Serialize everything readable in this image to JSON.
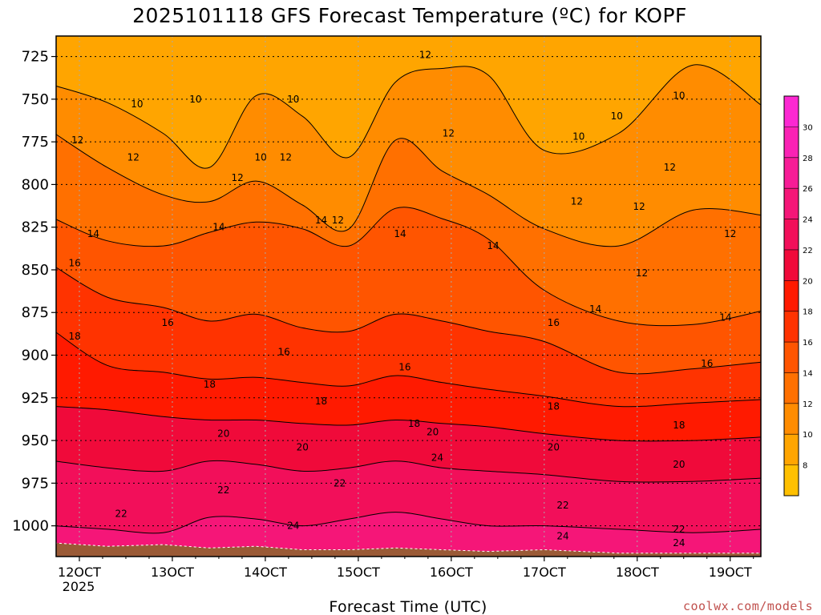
{
  "chart_data": {
    "type": "heatmap",
    "title": "2025101118 GFS Forecast Temperature (ºC) for KOPF",
    "xlabel": "Forecast Time (UTC)",
    "ylabel": "",
    "credit": "coolwx.com/models",
    "x_ticks": [
      "12OCT",
      "13OCT",
      "14OCT",
      "15OCT",
      "16OCT",
      "17OCT",
      "18OCT",
      "19OCT"
    ],
    "x_tick_day": [
      12,
      13,
      14,
      15,
      16,
      17,
      18,
      19
    ],
    "x_year_label": "2025",
    "x_range_days": [
      11.75,
      19.33
    ],
    "y_ticks": [
      725,
      750,
      775,
      800,
      825,
      850,
      875,
      900,
      925,
      950,
      975,
      1000
    ],
    "y_range_hPa": [
      713,
      1018
    ],
    "grid": true,
    "contour_interval": 2,
    "colorbar": {
      "levels": [
        6,
        8,
        10,
        12,
        14,
        16,
        18,
        20,
        22,
        24,
        26,
        28,
        30,
        32
      ],
      "tick_labels": [
        "8",
        "10",
        "12",
        "14",
        "16",
        "18",
        "20",
        "22",
        "24",
        "26",
        "28",
        "30"
      ],
      "colors": [
        "#ffc000",
        "#ffa500",
        "#ff8c00",
        "#ff7000",
        "#ff5500",
        "#ff3300",
        "#ff1a00",
        "#f00a3a",
        "#f20f5a",
        "#f51678",
        "#f71c96",
        "#fa22b4",
        "#fc28d2"
      ]
    },
    "isotherm_pressure_hPa": [
      {
        "temp": 10,
        "values": [
          742,
          752,
          770,
          790,
          748,
          760,
          784,
          740,
          732,
          736,
          780,
          770,
          730,
          754
        ]
      },
      {
        "temp": 12,
        "values": [
          770,
          790,
          806,
          810,
          798,
          812,
          826,
          774,
          792,
          806,
          826,
          836,
          815,
          818
        ]
      },
      {
        "temp": 14,
        "values": [
          820,
          833,
          836,
          828,
          822,
          826,
          836,
          814,
          820,
          832,
          862,
          880,
          882,
          874
        ]
      },
      {
        "temp": 16,
        "values": [
          848,
          866,
          872,
          880,
          876,
          884,
          886,
          876,
          880,
          886,
          892,
          910,
          908,
          904
        ]
      },
      {
        "temp": 18,
        "values": [
          886,
          906,
          910,
          914,
          913,
          916,
          918,
          912,
          916,
          920,
          924,
          930,
          928,
          926
        ]
      },
      {
        "temp": 20,
        "values": [
          930,
          932,
          936,
          938,
          938,
          940,
          941,
          938,
          940,
          942,
          946,
          950,
          950,
          948
        ]
      },
      {
        "temp": 22,
        "values": [
          962,
          966,
          968,
          962,
          964,
          968,
          966,
          962,
          966,
          968,
          970,
          974,
          974,
          972
        ]
      },
      {
        "temp": 24,
        "values": [
          1000,
          1002,
          1004,
          995,
          996,
          1000,
          996,
          992,
          996,
          1000,
          1000,
          1002,
          1004,
          1002
        ]
      }
    ],
    "isotherm_x_days": [
      11.75,
      12.3,
      12.9,
      13.4,
      13.9,
      14.4,
      14.9,
      15.4,
      15.9,
      16.4,
      17.0,
      17.8,
      18.6,
      19.33
    ],
    "contour_labels": [
      {
        "text": "16",
        "day": 11.95,
        "p": 846
      },
      {
        "text": "14",
        "day": 12.15,
        "p": 829
      },
      {
        "text": "12",
        "day": 11.98,
        "p": 774
      },
      {
        "text": "10",
        "day": 12.62,
        "p": 753
      },
      {
        "text": "10",
        "day": 13.25,
        "p": 750
      },
      {
        "text": "12",
        "day": 12.58,
        "p": 784
      },
      {
        "text": "14",
        "day": 13.5,
        "p": 825
      },
      {
        "text": "12",
        "day": 13.7,
        "p": 796
      },
      {
        "text": "10",
        "day": 13.95,
        "p": 784
      },
      {
        "text": "12",
        "day": 14.22,
        "p": 784
      },
      {
        "text": "10",
        "day": 14.3,
        "p": 750
      },
      {
        "text": "14",
        "day": 14.6,
        "p": 821
      },
      {
        "text": "12",
        "day": 14.78,
        "p": 821
      },
      {
        "text": "12",
        "day": 15.72,
        "p": 724
      },
      {
        "text": "14",
        "day": 15.45,
        "p": 829
      },
      {
        "text": "12",
        "day": 15.97,
        "p": 770
      },
      {
        "text": "14",
        "day": 16.45,
        "p": 836
      },
      {
        "text": "10",
        "day": 17.37,
        "p": 772
      },
      {
        "text": "10",
        "day": 17.78,
        "p": 760
      },
      {
        "text": "10",
        "day": 18.45,
        "p": 748
      },
      {
        "text": "12",
        "day": 17.35,
        "p": 810
      },
      {
        "text": "12",
        "day": 18.02,
        "p": 813
      },
      {
        "text": "12",
        "day": 18.35,
        "p": 790
      },
      {
        "text": "12",
        "day": 19.0,
        "p": 829
      },
      {
        "text": "12",
        "day": 18.05,
        "p": 852
      },
      {
        "text": "14",
        "day": 17.55,
        "p": 873
      },
      {
        "text": "14",
        "day": 18.95,
        "p": 878
      },
      {
        "text": "16",
        "day": 12.95,
        "p": 881
      },
      {
        "text": "16",
        "day": 14.2,
        "p": 898
      },
      {
        "text": "16",
        "day": 15.5,
        "p": 907
      },
      {
        "text": "16",
        "day": 17.1,
        "p": 881
      },
      {
        "text": "16",
        "day": 18.75,
        "p": 905
      },
      {
        "text": "18",
        "day": 11.95,
        "p": 889
      },
      {
        "text": "18",
        "day": 13.4,
        "p": 917
      },
      {
        "text": "18",
        "day": 14.6,
        "p": 927
      },
      {
        "text": "18",
        "day": 15.6,
        "p": 940
      },
      {
        "text": "18",
        "day": 17.1,
        "p": 930
      },
      {
        "text": "18",
        "day": 18.45,
        "p": 941
      },
      {
        "text": "20",
        "day": 13.55,
        "p": 946
      },
      {
        "text": "20",
        "day": 14.4,
        "p": 954
      },
      {
        "text": "20",
        "day": 15.8,
        "p": 945
      },
      {
        "text": "20",
        "day": 17.1,
        "p": 954
      },
      {
        "text": "20",
        "day": 18.45,
        "p": 964
      },
      {
        "text": "22",
        "day": 12.45,
        "p": 993
      },
      {
        "text": "22",
        "day": 13.55,
        "p": 979
      },
      {
        "text": "22",
        "day": 14.8,
        "p": 975
      },
      {
        "text": "22",
        "day": 17.2,
        "p": 988
      },
      {
        "text": "22",
        "day": 18.45,
        "p": 1002
      },
      {
        "text": "24",
        "day": 14.3,
        "p": 1000
      },
      {
        "text": "24",
        "day": 15.85,
        "p": 960
      },
      {
        "text": "24",
        "day": 17.2,
        "p": 1006
      },
      {
        "text": "24",
        "day": 18.45,
        "p": 1010
      }
    ]
  }
}
